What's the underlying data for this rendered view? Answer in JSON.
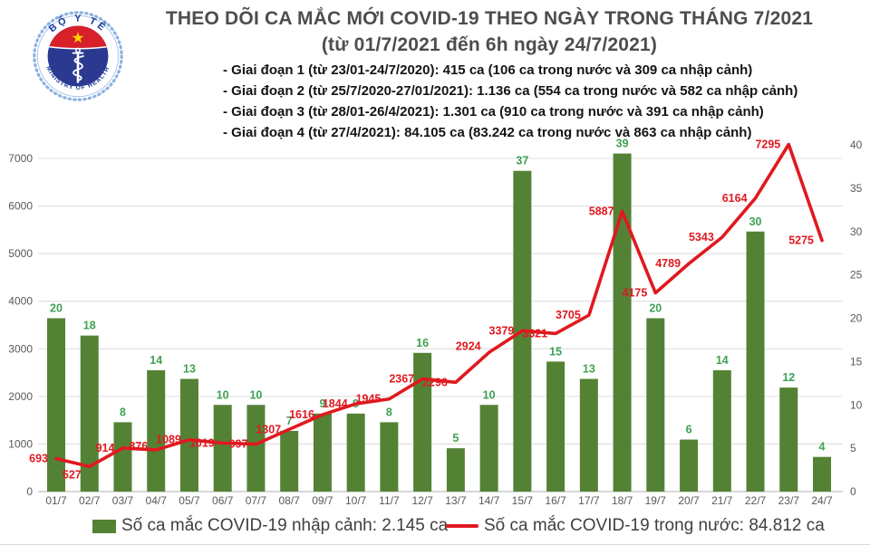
{
  "header": {
    "title_line1": "THEO DÕI CA MẮC MỚI COVID-19 THEO NGÀY TRONG THÁNG 7/2021",
    "title_line2": "(từ 01/7/2021 đến 6h ngày 24/7/2021)",
    "logo": {
      "top_text": "BỘ Y TẾ",
      "bottom_text": "MINISTRY OF HEALTH"
    },
    "notes": [
      "- Giai đoạn 1 (từ 23/01-24/7/2020): 415 ca (106 ca trong nước và 309 ca nhập cảnh)",
      "- Giai đoạn 2 (từ 25/7/2020-27/01/2021): 1.136 ca (554 ca trong nước và 582 ca nhập cảnh)",
      "- Giai đoạn 3 (từ 28/01-26/4/2021): 1.301 ca (910 ca trong nước và 391 ca nhập cảnh)",
      "- Giai đoạn 4 (từ 27/4/2021): 84.105 ca (83.242 ca trong nước và 863 ca nhập cảnh)"
    ]
  },
  "chart_data": {
    "type": "bar+line combo",
    "title": "THEO DÕI CA MẮC MỚI COVID-19 THEO NGÀY TRONG THÁNG 7/2021",
    "categories": [
      "01/7",
      "02/7",
      "03/7",
      "04/7",
      "05/7",
      "06/7",
      "07/7",
      "08/7",
      "09/7",
      "10/7",
      "11/7",
      "12/7",
      "13/7",
      "14/7",
      "15/7",
      "16/7",
      "17/7",
      "18/7",
      "19/7",
      "20/7",
      "21/7",
      "22/7",
      "23/7",
      "24/7"
    ],
    "series": [
      {
        "name": "Số ca mắc COVID-19 nhập cảnh",
        "type": "bar",
        "axis": "right",
        "values": [
          20,
          18,
          8,
          14,
          13,
          10,
          10,
          7,
          9,
          9,
          8,
          16,
          5,
          10,
          37,
          15,
          13,
          39,
          20,
          6,
          14,
          30,
          12,
          4
        ]
      },
      {
        "name": "Số ca mắc COVID-19 trong nước",
        "type": "line",
        "axis": "left",
        "values": [
          693,
          527,
          914,
          876,
          1089,
          1019,
          997,
          1307,
          1616,
          1844,
          1945,
          2367,
          2296,
          2924,
          3379,
          3321,
          3705,
          5887,
          4175,
          4789,
          5343,
          6164,
          7295,
          5275
        ]
      }
    ],
    "left_axis": {
      "min": 0,
      "max": 7000,
      "step": 1000,
      "ticks": [
        "0",
        "1000",
        "2000",
        "3000",
        "4000",
        "5000",
        "6000",
        "7000"
      ]
    },
    "right_axis": {
      "min": 0,
      "max": 40,
      "step": 5,
      "ticks": [
        "0",
        "5",
        "10",
        "15",
        "20",
        "25",
        "30",
        "35",
        "40"
      ]
    },
    "grid": "horizontal",
    "data_labels": true,
    "legend_position": "bottom"
  },
  "legend": {
    "bar_label": "Số ca mắc COVID-19 nhập cảnh: 2.145 ca",
    "line_label": "Số ca mắc COVID-19 trong nước: 84.812 ca"
  },
  "colors": {
    "bar": "#548235",
    "bar_label": "#3fa152",
    "line": "#e0191f",
    "line_label": "#e0191f",
    "axis_text": "#595959",
    "grid": "#dcdcdc",
    "axis_line": "#c0c0c0",
    "logo_red": "#d7202a",
    "logo_navy": "#2b3990",
    "logo_blue_text": "#16399a",
    "logo_ring": "#8ab1e0",
    "star_yellow": "#ffd400"
  }
}
